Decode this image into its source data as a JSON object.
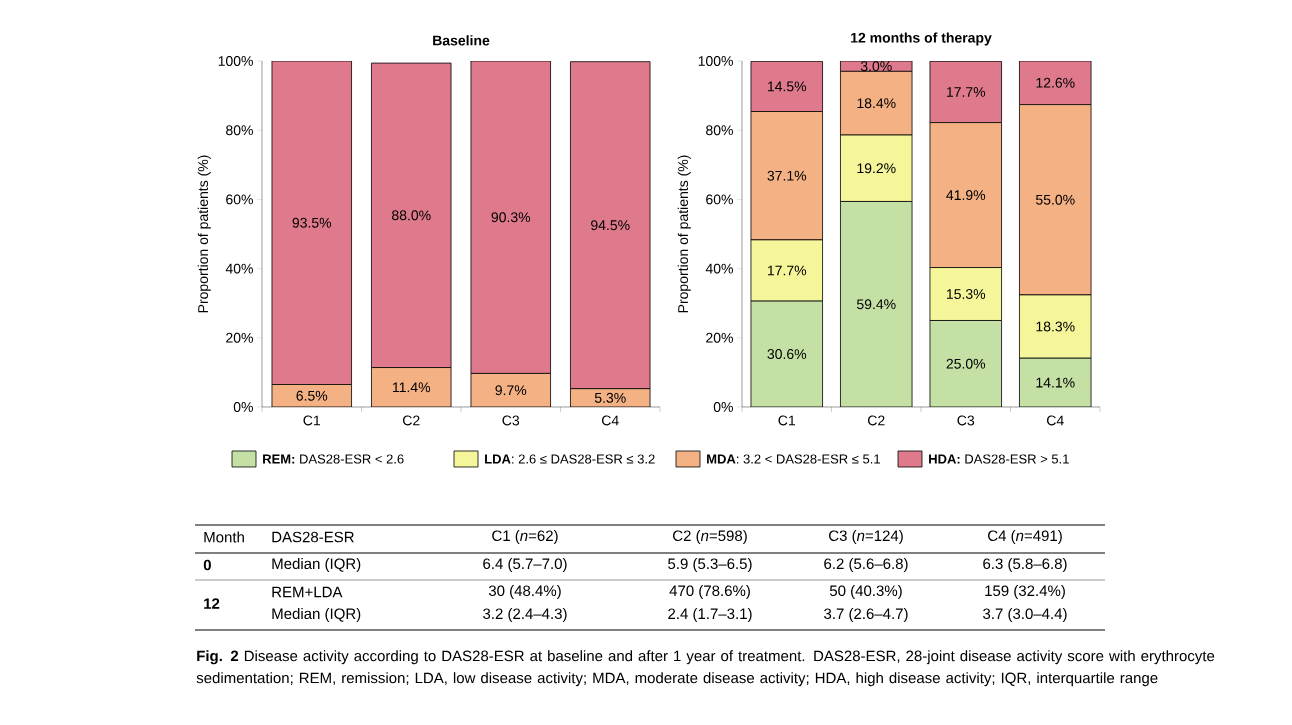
{
  "chart_data": [
    {
      "type": "bar",
      "stacked": true,
      "title": "Baseline",
      "ylabel": "Proportion of patients (%)",
      "categories": [
        "C1",
        "C2",
        "C3",
        "C4"
      ],
      "ylim": [
        0,
        100
      ],
      "yticks": [
        {
          "value": 0,
          "label": "0%"
        },
        {
          "value": 20,
          "label": "20%"
        },
        {
          "value": 40,
          "label": "40%"
        },
        {
          "value": 60,
          "label": "60%"
        },
        {
          "value": 80,
          "label": "80%"
        },
        {
          "value": 100,
          "label": "100%"
        }
      ],
      "series": [
        {
          "color": "#c5e0a5",
          "values": [
            0,
            0,
            0,
            0
          ],
          "value_labels": [
            null,
            null,
            null,
            null
          ]
        },
        {
          "color": "#f5f59a",
          "values": [
            0,
            null,
            0,
            null
          ],
          "value_labels": [
            null,
            null,
            null,
            null
          ]
        },
        {
          "color": "#f4b183",
          "values": [
            6.5,
            11.4,
            9.7,
            5.3
          ],
          "value_labels": [
            "6.5%",
            "11.4%",
            "9.7%",
            "5.3%"
          ]
        },
        {
          "color": "#df7a8c",
          "values": [
            93.5,
            88.0,
            90.3,
            94.5
          ],
          "value_labels": [
            "93.5%",
            "88.0%",
            "90.3%",
            "94.5%"
          ]
        }
      ]
    },
    {
      "type": "bar",
      "stacked": true,
      "title": "12 months of therapy",
      "ylabel": "Proportion of patients (%)",
      "categories": [
        "C1",
        "C2",
        "C3",
        "C4"
      ],
      "ylim": [
        0,
        100
      ],
      "yticks": [
        {
          "value": 0,
          "label": "0%"
        },
        {
          "value": 20,
          "label": "20%"
        },
        {
          "value": 40,
          "label": "40%"
        },
        {
          "value": 60,
          "label": "60%"
        },
        {
          "value": 80,
          "label": "80%"
        },
        {
          "value": 100,
          "label": "100%"
        }
      ],
      "legend": "bottom",
      "series": [
        {
          "name": "**REM:** DAS28-ESR < 2.6",
          "color": "#c5e0a5",
          "values": [
            30.6,
            59.4,
            25.0,
            14.1
          ],
          "value_labels": [
            "30.6%",
            "59.4%",
            "25.0%",
            "14.1%"
          ]
        },
        {
          "name": "**LDA**: 2.6 ≤ DAS28-ESR ≤ 3.2",
          "color": "#f5f59a",
          "values": [
            17.7,
            19.2,
            15.3,
            18.3
          ],
          "value_labels": [
            "17.7%",
            "19.2%",
            "15.3%",
            "18.3%"
          ]
        },
        {
          "name": "**MDA**: 3.2 < DAS28-ESR ≤ 5.1",
          "color": "#f4b183",
          "values": [
            37.1,
            18.4,
            41.9,
            55.0
          ],
          "value_labels": [
            "37.1%",
            "18.4%",
            "41.9%",
            "55.0%"
          ]
        },
        {
          "name": "**HDA:** DAS28-ESR > 5.1",
          "color": "#df7a8c",
          "values": [
            14.5,
            3.0,
            17.7,
            12.6
          ],
          "value_labels": [
            "14.5%",
            "3.0%",
            "17.7%",
            "12.6%"
          ]
        }
      ]
    },
    {
      "type": "other",
      "annotations": [
        "Month",
        "DAS28-ESR",
        "C1 (*n*=62)",
        "C2 (*n*=598)",
        "C3 (*n*=124)",
        "C4 (*n*=491)",
        "0",
        "Median (IQR)",
        "6.4 (5.7–7.0)",
        "5.9 (5.3–6.5)",
        "6.2 (5.6–6.8)",
        "6.3 (5.8–6.8)",
        "12",
        "REM+LDA",
        "30 (48.4%)",
        "470 (78.6%)",
        "50 (40.3%)",
        "159 (32.4%)",
        "Median (IQR)",
        "3.2 (2.4–4.3)",
        "2.4 (1.7–3.1)",
        "3.7 (2.6–4.7)",
        "3.7 (3.0–4.4)",
        "**Fig. 2** Disease activity according to DAS28-ESR at baseline and after 1 year of treatment. DAS28-ESR, 28-joint disease activity score with erythrocyte sedimentation; REM, remission; LDA, low disease activity; MDA, moderate disease activity; HDA, high disease activity; IQR, interquartile range"
      ]
    }
  ]
}
